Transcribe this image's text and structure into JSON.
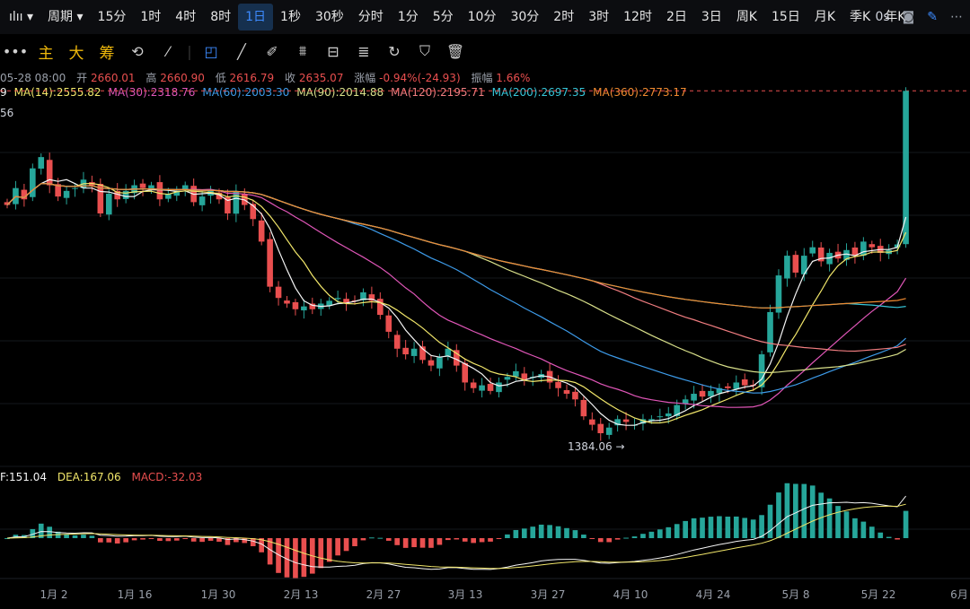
{
  "topbar": {
    "chart_type_icon": "candlestick-icon",
    "period_label": "周期",
    "timeframes": [
      "15分",
      "1时",
      "4时",
      "8时",
      "1日",
      "1秒",
      "30秒",
      "分时",
      "1分",
      "5分",
      "10分",
      "30分",
      "2时",
      "3时",
      "12时",
      "2日",
      "3日",
      "周K",
      "15日",
      "月K",
      "季K",
      "年K"
    ],
    "active": "1日",
    "countdown": "0s"
  },
  "toolbar": {
    "items": [
      "主",
      "大",
      "筹"
    ]
  },
  "ohlc": {
    "date": "05-28 08:00",
    "open_label": "开",
    "open": "2660.01",
    "high_label": "高",
    "high": "2660.90",
    "low_label": "低",
    "low": "2616.79",
    "close_label": "收",
    "close": "2635.07",
    "change_label": "涨幅",
    "change": "-0.94%(-24.93)",
    "amp_label": "振幅",
    "amp": "1.66%"
  },
  "ma_legend": [
    {
      "text": "9",
      "color": "#f5f5f5"
    },
    {
      "text": "MA(14):2555.82",
      "color": "#f1e66a"
    },
    {
      "text": "MA(30):2318.76",
      "color": "#e056b8"
    },
    {
      "text": "MA(60):2003.30",
      "color": "#3d9be9"
    },
    {
      "text": "MA(90):2014.88",
      "color": "#d9e08a"
    },
    {
      "text": "MA(120):2195.71",
      "color": "#f07d80"
    },
    {
      "text": "MA(200):2697.35",
      "color": "#36c6d9"
    },
    {
      "text": "MA(360):2773.17",
      "color": "#f08a30"
    }
  ],
  "vol_text": "56",
  "macd_legend": {
    "dif": "F:151.04",
    "dea": "DEA:167.06",
    "macd": "MACD:-32.03"
  },
  "low_marker": "1384.06",
  "chart_data": {
    "type": "candlestick",
    "x_labels": [
      "1月 2",
      "1月 16",
      "1月 30",
      "2月 13",
      "2月 27",
      "3月 13",
      "3月 27",
      "4月 10",
      "4月 24",
      "5月 8",
      "5月 22",
      "6月"
    ],
    "close_series_approx": [
      2230,
      2290,
      2250,
      2360,
      2400,
      2300,
      2260,
      2280,
      2290,
      2320,
      2300,
      2200,
      2270,
      2250,
      2280,
      2300,
      2290,
      2300,
      2250,
      2270,
      2280,
      2300,
      2240,
      2260,
      2280,
      2250,
      2200,
      2280,
      2230,
      2180,
      2100,
      1940,
      1900,
      1880,
      1860,
      1870,
      1860,
      1880,
      1890,
      1900,
      1880,
      1890,
      1920,
      1890,
      1840,
      1780,
      1720,
      1700,
      1720,
      1680,
      1660,
      1690,
      1720,
      1660,
      1600,
      1580,
      1590,
      1570,
      1600,
      1620,
      1640,
      1610,
      1620,
      1630,
      1600,
      1580,
      1560,
      1540,
      1480,
      1450,
      1420,
      1440,
      1470,
      1460,
      1450,
      1470,
      1470,
      1480,
      1490,
      1520,
      1540,
      1560,
      1550,
      1570,
      1580,
      1580,
      1600,
      1590,
      1590,
      1700,
      1850,
      1980,
      2050,
      1990,
      2050,
      2080,
      2030,
      2060,
      2040,
      2070,
      2050,
      2100,
      2080,
      2060,
      2070,
      2090,
      2635
    ],
    "ma": {
      "MA14": "2555.82",
      "MA30": "2318.76",
      "MA60": "2003.30",
      "MA90": "2014.88",
      "MA120": "2195.71",
      "MA200": "2697.35",
      "MA360": "2773.17"
    },
    "low_point": 1384.06,
    "macd": {
      "dif": 151.04,
      "dea": 167.06,
      "hist": -32.03
    }
  }
}
